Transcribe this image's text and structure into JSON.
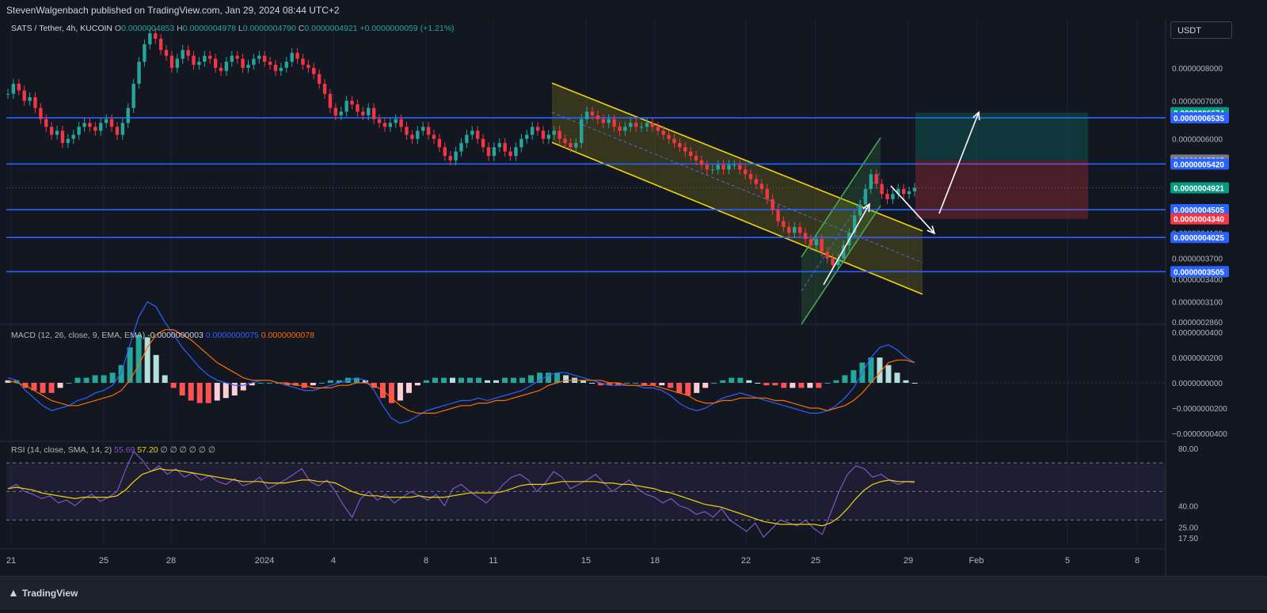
{
  "header": {
    "publish_line": "StevenWalgenbach published on TradingView.com, Jan 29, 2024 08:44 UTC+2",
    "currency": "USDT"
  },
  "price_legend": {
    "symbol": "SATS / Tether, 4h, KUCOIN",
    "o_label": "O",
    "o_value": "0.0000004853",
    "h_label": "H",
    "h_value": "0.0000004978",
    "l_label": "L",
    "l_value": "0.0000004790",
    "c_label": "C",
    "c_value": "0.0000004921",
    "change": "+0.0000000059 (+1.21%)"
  },
  "macd_legend": {
    "name": "MACD (12, 26, close, 9, EMA, EMA)",
    "hist": "-0.0000000003",
    "macd": "0.0000000075",
    "signal": "0.0000000078"
  },
  "rsi_legend": {
    "name": "RSI (14, close, SMA, 14, 2)",
    "rsi": "55.69",
    "sma": "57.20",
    "extras": "∅ ∅ ∅ ∅ ∅ ∅"
  },
  "footer": {
    "brand": "TradingView",
    "logo_icon": "tradingview-logo-icon"
  },
  "colors": {
    "bull": "#26a69a",
    "bear": "#f23645",
    "level_line": "#2962ff",
    "channel": "#f0d40a",
    "green_channel": "#4caf50",
    "macd": "#2962ff",
    "signal": "#ff6d00",
    "rsi": "#7e57c2",
    "rsi_ma": "#f0d40a"
  },
  "chart_data": [
    {
      "type": "candlestick",
      "pane": "price",
      "y_scale": "log",
      "ylim": [
        2.85e-07,
        9.75e-07
      ],
      "y_ticks": [
        "0.0000008000",
        "0.0000007000",
        "0.0000006000",
        "0.0000004100",
        "0.0000003700",
        "0.0000003400",
        "0.0000003100",
        "0.0000002860"
      ],
      "x_ticks": [
        "21",
        "25",
        "28",
        "2024",
        "4",
        "8",
        "11",
        "15",
        "18",
        "22",
        "25",
        "29",
        "Feb",
        "5",
        "8"
      ],
      "horizontal_levels": [
        6.535e-07,
        5.42e-07,
        4.505e-07,
        4.025e-07,
        3.505e-07
      ],
      "price_labels": [
        {
          "text": "0.0000006674",
          "value": 6.674e-07,
          "color": "#089981"
        },
        {
          "text": "0.0000006535",
          "value": 6.535e-07,
          "color": "#2962ff"
        },
        {
          "text": "0.0000005507",
          "value": 5.507e-07,
          "color": "#787b86"
        },
        {
          "text": "0.0000005420",
          "value": 5.42e-07,
          "color": "#2962ff"
        },
        {
          "text": "0.0000004921",
          "value": 4.921e-07,
          "color": "#089981"
        },
        {
          "text": "0.0000004505",
          "value": 4.505e-07,
          "color": "#2962ff"
        },
        {
          "text": "0.0000004340",
          "value": 4.34e-07,
          "color": "#f23645"
        },
        {
          "text": "0.0000004025",
          "value": 4.025e-07,
          "color": "#2962ff"
        },
        {
          "text": "0.0000003505",
          "value": 3.505e-07,
          "color": "#2962ff"
        }
      ],
      "position_tool": {
        "entry": 5.507e-07,
        "target": 6.674e-07,
        "stop": 4.34e-07
      },
      "last_price": 4.921e-07,
      "closes": [
        7.2,
        7.5,
        7.3,
        7.0,
        7.1,
        6.8,
        6.5,
        6.3,
        6.1,
        6.2,
        5.9,
        6.0,
        6.1,
        6.3,
        6.4,
        6.3,
        6.2,
        6.4,
        6.5,
        6.3,
        6.1,
        6.4,
        6.8,
        7.5,
        8.2,
        8.8,
        9.2,
        9.0,
        8.6,
        8.4,
        8.0,
        8.3,
        8.6,
        8.4,
        8.1,
        8.2,
        8.4,
        8.3,
        8.0,
        7.9,
        8.2,
        8.4,
        8.3,
        8.0,
        8.1,
        8.3,
        8.4,
        8.2,
        8.1,
        7.9,
        8.0,
        8.2,
        8.5,
        8.3,
        8.1,
        8.0,
        7.8,
        7.5,
        7.2,
        6.8,
        6.6,
        6.7,
        7.0,
        6.9,
        6.7,
        6.6,
        6.8,
        6.5,
        6.4,
        6.3,
        6.4,
        6.5,
        6.3,
        6.1,
        6.0,
        6.2,
        6.3,
        6.1,
        6.0,
        5.8,
        5.6,
        5.5,
        5.7,
        5.9,
        6.1,
        6.2,
        6.0,
        5.8,
        5.6,
        5.8,
        5.9,
        5.7,
        5.6,
        5.8,
        6.0,
        6.1,
        6.3,
        6.2,
        6.0,
        6.1,
        6.2,
        6.0,
        5.9,
        5.8,
        5.9,
        6.5,
        6.7,
        6.6,
        6.5,
        6.4,
        6.5,
        6.3,
        6.2,
        6.3,
        6.4,
        6.3,
        6.3,
        6.4,
        6.3,
        6.2,
        6.1,
        6.0,
        5.9,
        5.8,
        5.7,
        5.6,
        5.5,
        5.4,
        5.3,
        5.3,
        5.4,
        5.3,
        5.4,
        5.4,
        5.3,
        5.2,
        5.1,
        5.0,
        4.9,
        4.7,
        4.5,
        4.3,
        4.2,
        4.1,
        4.2,
        4.1,
        4.0,
        3.9,
        4.0,
        3.8,
        3.7,
        3.6,
        3.7,
        3.9,
        4.1,
        4.4,
        4.6,
        4.9,
        5.2,
        5.0,
        4.8,
        4.7,
        4.8,
        4.9,
        4.8,
        4.85,
        4.92
      ],
      "macd_peaks_note": ""
    },
    {
      "type": "macd",
      "pane": "macd",
      "ylim": [
        -4.5e-08,
        4.5e-08
      ],
      "y_ticks": [
        "0.0000000400",
        "0.0000000200",
        "0.0000000000",
        "−0.0000000200",
        "−0.0000000400"
      ],
      "y_tick_values": [
        4e-08,
        2e-08,
        0,
        -2e-08,
        -4e-08
      ],
      "macd": [
        0.2,
        0.1,
        -0.3,
        -0.6,
        -0.9,
        -1.1,
        -1.0,
        -0.9,
        -0.7,
        -0.6,
        -0.4,
        -0.3,
        -0.1,
        0.4,
        1.5,
        2.6,
        3.2,
        3.0,
        2.4,
        1.9,
        1.4,
        1.0,
        0.6,
        0.3,
        0.1,
        0.0,
        -0.1,
        -0.1,
        0.0,
        0.1,
        0.1,
        0.0,
        -0.1,
        -0.2,
        -0.3,
        -0.3,
        -0.2,
        -0.1,
        0.0,
        0.1,
        0.2,
        0.1,
        -0.3,
        -0.9,
        -1.4,
        -1.6,
        -1.5,
        -1.3,
        -1.1,
        -1.0,
        -0.9,
        -0.8,
        -0.7,
        -0.7,
        -0.6,
        -0.7,
        -0.6,
        -0.5,
        -0.4,
        -0.3,
        -0.1,
        0.1,
        0.3,
        0.4,
        0.4,
        0.3,
        0.2,
        0.1,
        0.0,
        -0.1,
        -0.1,
        -0.1,
        -0.1,
        -0.2,
        -0.2,
        -0.3,
        -0.5,
        -0.8,
        -1.0,
        -1.1,
        -1.0,
        -0.8,
        -0.6,
        -0.5,
        -0.4,
        -0.5,
        -0.6,
        -0.7,
        -0.8,
        -0.9,
        -1.0,
        -1.1,
        -1.2,
        -1.2,
        -1.1,
        -0.9,
        -0.6,
        -0.2,
        0.4,
        1.0,
        1.4,
        1.5,
        1.3,
        1.0,
        0.8
      ],
      "signal": [
        0.1,
        0.0,
        -0.1,
        -0.3,
        -0.5,
        -0.7,
        -0.8,
        -0.9,
        -0.9,
        -0.8,
        -0.7,
        -0.6,
        -0.5,
        -0.3,
        0.1,
        0.7,
        1.4,
        1.9,
        2.1,
        2.1,
        1.9,
        1.7,
        1.4,
        1.1,
        0.8,
        0.6,
        0.4,
        0.2,
        0.1,
        0.1,
        0.1,
        0.0,
        0.0,
        -0.1,
        -0.1,
        -0.2,
        -0.2,
        -0.2,
        -0.1,
        -0.1,
        0.0,
        0.0,
        -0.1,
        -0.3,
        -0.6,
        -0.9,
        -1.1,
        -1.2,
        -1.2,
        -1.2,
        -1.1,
        -1.0,
        -0.9,
        -0.9,
        -0.8,
        -0.8,
        -0.7,
        -0.7,
        -0.6,
        -0.5,
        -0.4,
        -0.3,
        -0.1,
        0.0,
        0.1,
        0.1,
        0.1,
        0.1,
        0.1,
        0.0,
        0.0,
        -0.1,
        -0.1,
        -0.1,
        -0.1,
        -0.2,
        -0.3,
        -0.4,
        -0.5,
        -0.7,
        -0.8,
        -0.8,
        -0.7,
        -0.7,
        -0.6,
        -0.6,
        -0.6,
        -0.6,
        -0.7,
        -0.7,
        -0.8,
        -0.9,
        -1.0,
        -1.0,
        -1.1,
        -1.0,
        -0.9,
        -0.7,
        -0.4,
        0.0,
        0.4,
        0.8,
        0.9,
        0.9,
        0.8
      ],
      "unit": 2e-08
    },
    {
      "type": "rsi",
      "pane": "rsi",
      "ylim": [
        12,
        84
      ],
      "y_ticks": [
        "80.00",
        "40.00",
        "25.00",
        "17.50"
      ],
      "y_tick_values": [
        80,
        40,
        25,
        17.5
      ],
      "band": [
        30,
        70
      ],
      "rsi": [
        52,
        55,
        50,
        48,
        45,
        47,
        42,
        44,
        40,
        45,
        48,
        43,
        46,
        50,
        65,
        78,
        72,
        64,
        68,
        62,
        66,
        60,
        63,
        58,
        61,
        57,
        55,
        59,
        54,
        56,
        60,
        52,
        55,
        58,
        62,
        66,
        57,
        54,
        58,
        50,
        40,
        32,
        45,
        50,
        44,
        48,
        42,
        46,
        50,
        47,
        44,
        48,
        40,
        52,
        55,
        50,
        46,
        42,
        48,
        55,
        60,
        62,
        58,
        50,
        56,
        64,
        60,
        52,
        55,
        58,
        62,
        56,
        50,
        54,
        58,
        52,
        48,
        46,
        42,
        45,
        40,
        38,
        34,
        36,
        32,
        38,
        30,
        26,
        22,
        28,
        18,
        24,
        30,
        28,
        26,
        30,
        24,
        20,
        35,
        50,
        62,
        68,
        66,
        60,
        62,
        58,
        55,
        57,
        56
      ],
      "rsi_ma": [
        52,
        53,
        52,
        51,
        49,
        48,
        47,
        46,
        45,
        46,
        46,
        46,
        46,
        47,
        51,
        57,
        62,
        64,
        66,
        65,
        65,
        64,
        63,
        62,
        61,
        60,
        59,
        58,
        57,
        57,
        57,
        56,
        56,
        56,
        57,
        58,
        58,
        57,
        57,
        56,
        53,
        50,
        48,
        47,
        47,
        46,
        46,
        46,
        46,
        47,
        46,
        46,
        46,
        47,
        48,
        49,
        49,
        49,
        49,
        50,
        52,
        54,
        55,
        55,
        55,
        56,
        57,
        57,
        57,
        57,
        57,
        56,
        56,
        55,
        55,
        54,
        53,
        52,
        50,
        49,
        47,
        45,
        43,
        41,
        40,
        39,
        37,
        35,
        33,
        31,
        29,
        28,
        27,
        27,
        27,
        27,
        27,
        26,
        28,
        32,
        38,
        45,
        51,
        55,
        57,
        58,
        57,
        57,
        57
      ]
    }
  ]
}
